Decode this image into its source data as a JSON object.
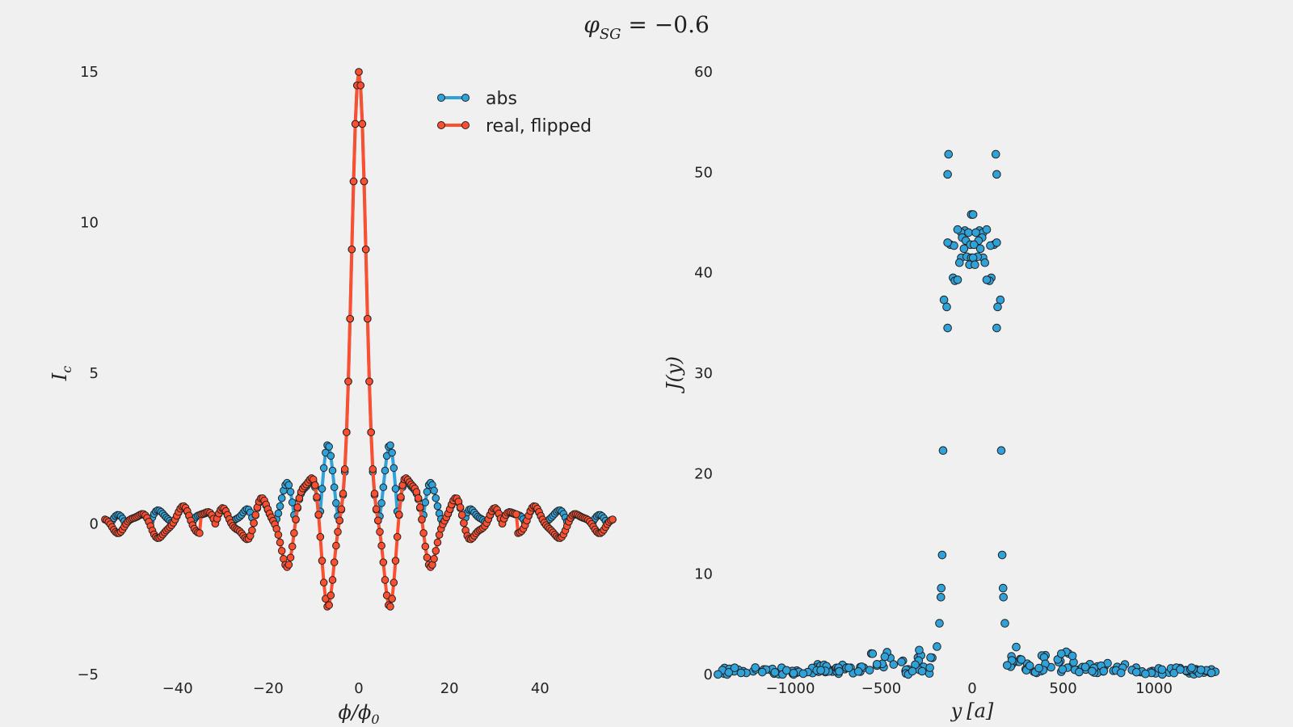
{
  "title": "φSG = −0.6",
  "title_main": "φ",
  "title_sub": "SG",
  "title_rest": " = −0.6",
  "chart_data": [
    {
      "type": "line",
      "xlabel": "ϕ/ϕ0",
      "xlabel_main": "ϕ/ϕ",
      "xlabel_sub": "0",
      "ylabel": "Ic",
      "ylabel_main": "I",
      "ylabel_sub": "c",
      "xlim": [
        -56,
        56
      ],
      "ylim": [
        -5,
        15
      ],
      "xticks": [
        "−40",
        "−20",
        "0",
        "20",
        "40"
      ],
      "xtick_values": [
        -40,
        -20,
        0,
        20,
        40
      ],
      "yticks": [
        "−5",
        "0",
        "5",
        "10",
        "15"
      ],
      "ytick_values": [
        -5,
        0,
        5,
        10,
        15
      ],
      "grid": false,
      "legend_position": "top-right",
      "series": [
        {
          "name": "abs",
          "color": "#30a2da",
          "description": "absolute value of Fraunhofer-like interference pattern, central lobe peak ~15 at x=0, side lobes ~2.7 at x≈±4.5, decaying oscillation to ~0.3 at x≈±50"
        },
        {
          "name": "real, flipped",
          "color": "#fc4f30",
          "description": "signed pattern, central peak ~15, first minima ~−2.8 at x≈±4.5, sign flips at x≈±30 and x≈±35"
        }
      ]
    },
    {
      "type": "scatter",
      "xlabel": "y [a]",
      "xlabel_main": "y",
      "xlabel_bracket": "[a]",
      "ylabel": "J(y)",
      "xlim": [
        -1400,
        1400
      ],
      "ylim": [
        0,
        60
      ],
      "xticks": [
        "−1000",
        "−500",
        "0",
        "500",
        "1000"
      ],
      "xtick_values": [
        -1000,
        -500,
        0,
        500,
        1000
      ],
      "yticks": [
        "0",
        "10",
        "20",
        "30",
        "40",
        "50",
        "60"
      ],
      "ytick_values": [
        0,
        10,
        20,
        30,
        40,
        50,
        60
      ],
      "grid": false,
      "series": [
        {
          "color": "#30a2da",
          "points": [
            [
              -130,
              51.8
            ],
            [
              130,
              51.8
            ],
            [
              -135,
              49.8
            ],
            [
              135,
              49.8
            ],
            [
              0,
              45.8
            ],
            [
              -5,
              45.8
            ],
            [
              5,
              45.8
            ],
            [
              -40,
              44.2
            ],
            [
              40,
              44.2
            ],
            [
              -60,
              44.0
            ],
            [
              60,
              44.0
            ],
            [
              -80,
              44.3
            ],
            [
              80,
              44.3
            ],
            [
              -20,
              44.0
            ],
            [
              20,
              44.0
            ],
            [
              -55,
              43.5
            ],
            [
              55,
              43.5
            ],
            [
              -35,
              43.2
            ],
            [
              35,
              43.2
            ],
            [
              -120,
              42.8
            ],
            [
              120,
              42.8
            ],
            [
              -100,
              42.7
            ],
            [
              100,
              42.7
            ],
            [
              -135,
              43.0
            ],
            [
              135,
              43.0
            ],
            [
              -10,
              42.8
            ],
            [
              10,
              42.8
            ],
            [
              -45,
              42.4
            ],
            [
              45,
              42.4
            ],
            [
              -60,
              41.5
            ],
            [
              60,
              41.5
            ],
            [
              -30,
              41.6
            ],
            [
              30,
              41.6
            ],
            [
              -5,
              41.5
            ],
            [
              5,
              41.5
            ],
            [
              -70,
              41.0
            ],
            [
              70,
              41.0
            ],
            [
              -15,
              40.8
            ],
            [
              15,
              40.8
            ],
            [
              -105,
              39.5
            ],
            [
              105,
              39.5
            ],
            [
              -95,
              39.2
            ],
            [
              95,
              39.2
            ],
            [
              -80,
              39.3
            ],
            [
              80,
              39.3
            ],
            [
              -155,
              37.3
            ],
            [
              155,
              37.3
            ],
            [
              -140,
              36.6
            ],
            [
              140,
              36.6
            ],
            [
              -135,
              34.5
            ],
            [
              135,
              34.5
            ],
            [
              -160,
              22.3
            ],
            [
              160,
              22.3
            ],
            [
              -165,
              11.9
            ],
            [
              165,
              11.9
            ],
            [
              -170,
              8.6
            ],
            [
              170,
              8.6
            ],
            [
              -172,
              7.7
            ],
            [
              172,
              7.7
            ],
            [
              -180,
              5.1
            ],
            [
              180,
              5.1
            ]
          ],
          "baseline_note": "dense band of points near J=0–2.6 spanning |y| from ~190 to ~1400, with bumps ~2.5 at |y|≈230 and |y|≈450"
        }
      ]
    }
  ],
  "legend": {
    "abs_label": "abs",
    "real_label": "real, flipped"
  }
}
